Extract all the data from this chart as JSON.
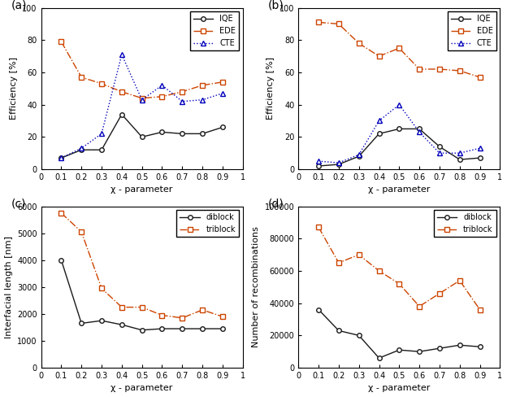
{
  "chi": [
    0.1,
    0.2,
    0.3,
    0.4,
    0.5,
    0.6,
    0.7,
    0.8,
    0.9
  ],
  "a_IQE": [
    7,
    12,
    12,
    34,
    20,
    23,
    22,
    22,
    26
  ],
  "a_EDE": [
    79,
    57,
    53,
    48,
    44,
    45,
    48,
    52,
    54
  ],
  "a_CTE": [
    7,
    13,
    22,
    71,
    43,
    52,
    42,
    43,
    47
  ],
  "b_IQE": [
    2,
    3,
    8,
    22,
    25,
    25,
    14,
    6,
    7
  ],
  "b_EDE": [
    91,
    90,
    78,
    70,
    75,
    62,
    62,
    61,
    57
  ],
  "b_CTE": [
    5,
    4,
    9,
    30,
    40,
    23,
    10,
    10,
    13
  ],
  "c_diblock": [
    4000,
    1650,
    1750,
    1600,
    1400,
    1450,
    1450,
    1450,
    1450
  ],
  "c_triblock": [
    5750,
    5050,
    2950,
    2250,
    2250,
    1950,
    1850,
    2150,
    1900
  ],
  "d_diblock": [
    36000,
    23000,
    20000,
    6000,
    11000,
    10000,
    12000,
    14000,
    13000
  ],
  "d_triblock": [
    87000,
    65000,
    70000,
    60000,
    52000,
    38000,
    46000,
    54000,
    36000
  ],
  "black": "#1a1a1a",
  "orange": "#cc4400",
  "blue": "#0000bb",
  "label_IQE": "IQE",
  "label_EDE": "EDE",
  "label_CTE": "CTE",
  "label_diblock": "diblock",
  "label_triblock": "triblock",
  "xlabel": "χ - parameter",
  "ylabel_ab": "Efficiency [%]",
  "ylabel_c": "Interfacial length [nm]",
  "ylabel_d": "Number of recombinations",
  "panel_labels": [
    "(a)",
    "(b)",
    "(c)",
    "(d)"
  ],
  "bg_color": "#ffffff"
}
